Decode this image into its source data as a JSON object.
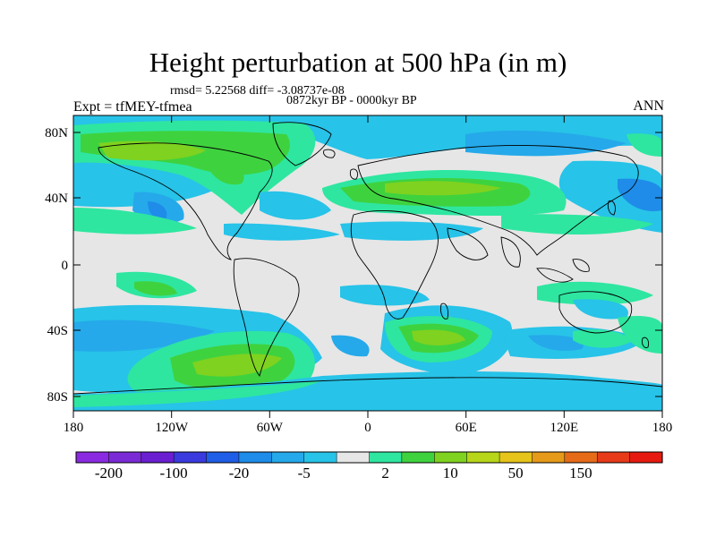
{
  "title": "Height perturbation at 500 hPa (in m)",
  "stats": "rmsd= 5.22568 diff= -3.08737e-08",
  "period": "0872kyr BP - 0000kyr BP",
  "experiment": "Expt = tfMEY-tfmea",
  "season": "ANN",
  "lat_labels": [
    "80N",
    "40N",
    "0",
    "40S",
    "80S"
  ],
  "lon_labels": [
    "180",
    "120W",
    "60W",
    "0",
    "60E",
    "120E",
    "180"
  ],
  "colorbar": {
    "colors": [
      "#8a2be2",
      "#7b2bd6",
      "#6a1fd0",
      "#3a3adf",
      "#1f5ee6",
      "#1e8ce8",
      "#25a9ea",
      "#27c3e8",
      "#e6e6e6",
      "#2ee6a0",
      "#3fd23f",
      "#7fd21f",
      "#b7d619",
      "#e6c419",
      "#e69a19",
      "#e66b19",
      "#e63a19",
      "#e61a10"
    ],
    "labels": [
      "-200",
      "-100",
      "-20",
      "-5",
      "2",
      "10",
      "50",
      "150"
    ],
    "neutral": "#e6e6e6"
  }
}
